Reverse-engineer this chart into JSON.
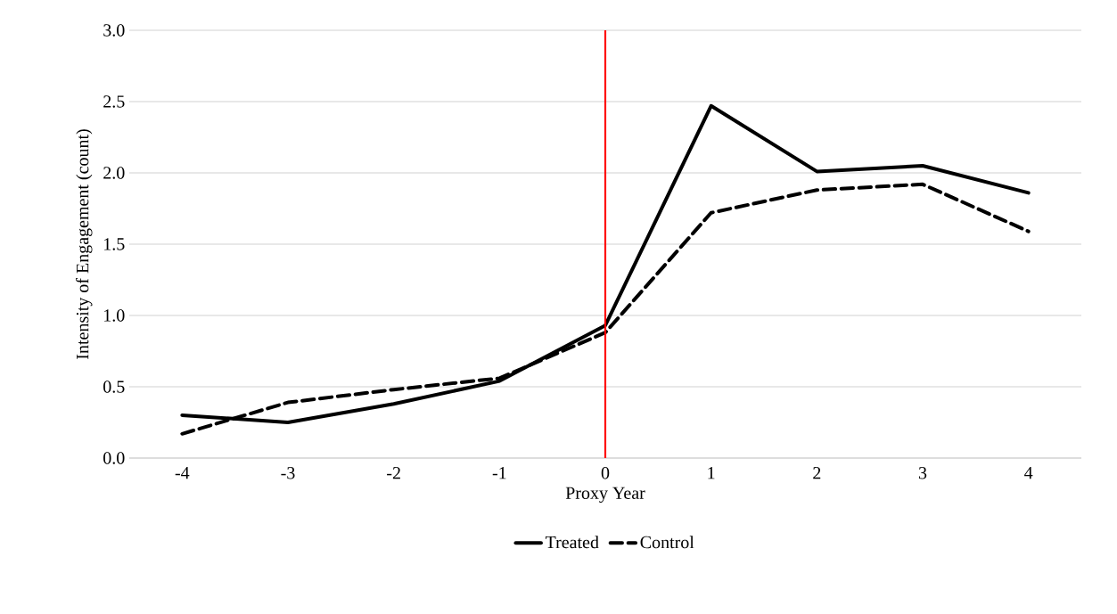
{
  "chart_data": {
    "type": "line",
    "xlabel": "Proxy Year",
    "ylabel": "Intensity of Engagement (count)",
    "x": [
      -4,
      -3,
      -2,
      -1,
      0,
      1,
      2,
      3,
      4
    ],
    "series": [
      {
        "name": "Treated",
        "color": "#000000",
        "line_style": "solid",
        "values": [
          0.3,
          0.25,
          0.38,
          0.54,
          0.93,
          2.47,
          2.01,
          2.05,
          1.86
        ]
      },
      {
        "name": "Control",
        "color": "#000000",
        "line_style": "dashed",
        "values": [
          0.17,
          0.39,
          0.48,
          0.56,
          0.88,
          1.72,
          1.88,
          1.92,
          1.59
        ]
      }
    ],
    "xlim": [
      -4.5,
      4.5
    ],
    "xticks": [
      -4,
      -3,
      -2,
      -1,
      0,
      1,
      2,
      3,
      4
    ],
    "ylim": [
      0,
      3
    ],
    "yticks": [
      {
        "value": 0,
        "label": "0.0"
      },
      {
        "value": 0.5,
        "label": "0.5"
      },
      {
        "value": 1,
        "label": "1.0"
      },
      {
        "value": 1.5,
        "label": "1.5"
      },
      {
        "value": 2,
        "label": "2.0"
      },
      {
        "value": 2.5,
        "label": "2.5"
      },
      {
        "value": 3,
        "label": "3.0"
      }
    ],
    "ref_lines": [
      {
        "axis": "x",
        "value": 0,
        "color": "#ff0000"
      }
    ],
    "grid": "y",
    "legend": "bottom",
    "marker": "none"
  }
}
